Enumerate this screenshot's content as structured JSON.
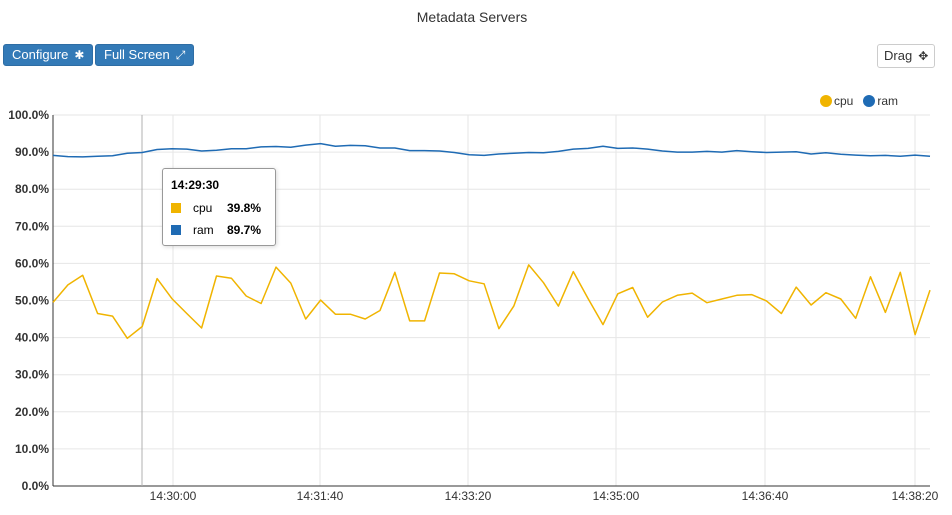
{
  "title": "Metadata Servers",
  "toolbar": {
    "configure_label": "Configure",
    "configure_icon": "gear-icon",
    "fullscreen_label": "Full Screen",
    "fullscreen_icon": "expand-icon",
    "drag_label": "Drag",
    "drag_icon": "move-arrows-icon"
  },
  "colors": {
    "cpu": "#f0b400",
    "ram": "#1f6bb4",
    "button": "#337ab7"
  },
  "tooltip": {
    "time": "14:29:30",
    "rows": [
      {
        "name": "cpu",
        "value": "39.8%"
      },
      {
        "name": "ram",
        "value": "89.7%"
      }
    ]
  },
  "chart_data": {
    "type": "line",
    "title": "Metadata Servers",
    "xlabel": "",
    "ylabel": "",
    "y_ticks": [
      "0.0%",
      "10.0%",
      "20.0%",
      "30.0%",
      "40.0%",
      "50.0%",
      "60.0%",
      "70.0%",
      "80.0%",
      "90.0%",
      "100.0%"
    ],
    "x_ticks": [
      "14:30:00",
      "14:31:40",
      "14:33:20",
      "14:35:00",
      "14:36:40",
      "14:38:20"
    ],
    "ylim": [
      0,
      100
    ],
    "grid": true,
    "legend_position": "top-right",
    "series": [
      {
        "name": "cpu",
        "values": [
          49.5,
          54.2,
          56.8,
          46.5,
          45.8,
          39.8,
          43.0,
          55.9,
          50.5,
          46.5,
          42.6,
          56.6,
          56.0,
          51.2,
          49.2,
          59.0,
          54.7,
          45.0,
          50.1,
          46.3,
          46.3,
          45.0,
          47.3,
          57.6,
          44.5,
          44.5,
          57.4,
          57.2,
          55.3,
          54.5,
          42.4,
          48.5,
          59.6,
          54.8,
          48.5,
          57.8,
          50.5,
          43.5,
          51.8,
          53.5,
          45.5,
          49.6,
          51.4,
          52.0,
          49.4,
          50.4,
          51.4,
          51.6,
          49.9,
          46.5,
          53.6,
          48.8,
          52.1,
          50.4,
          45.2,
          56.4,
          46.8,
          57.6,
          40.8,
          52.8
        ]
      },
      {
        "name": "ram",
        "values": [
          89.1,
          88.8,
          88.7,
          88.9,
          89.0,
          89.7,
          89.9,
          90.7,
          90.9,
          90.8,
          90.3,
          90.5,
          90.9,
          90.9,
          91.4,
          91.5,
          91.3,
          91.9,
          92.3,
          91.6,
          91.8,
          91.7,
          91.1,
          91.1,
          90.4,
          90.4,
          90.3,
          89.9,
          89.3,
          89.1,
          89.5,
          89.7,
          89.9,
          89.8,
          90.2,
          90.8,
          91.0,
          91.6,
          91.0,
          91.1,
          90.8,
          90.3,
          90.0,
          90.0,
          90.2,
          90.0,
          90.4,
          90.1,
          89.9,
          90.0,
          90.1,
          89.5,
          89.8,
          89.4,
          89.2,
          89.0,
          89.1,
          88.9,
          89.2,
          88.9
        ]
      }
    ]
  }
}
